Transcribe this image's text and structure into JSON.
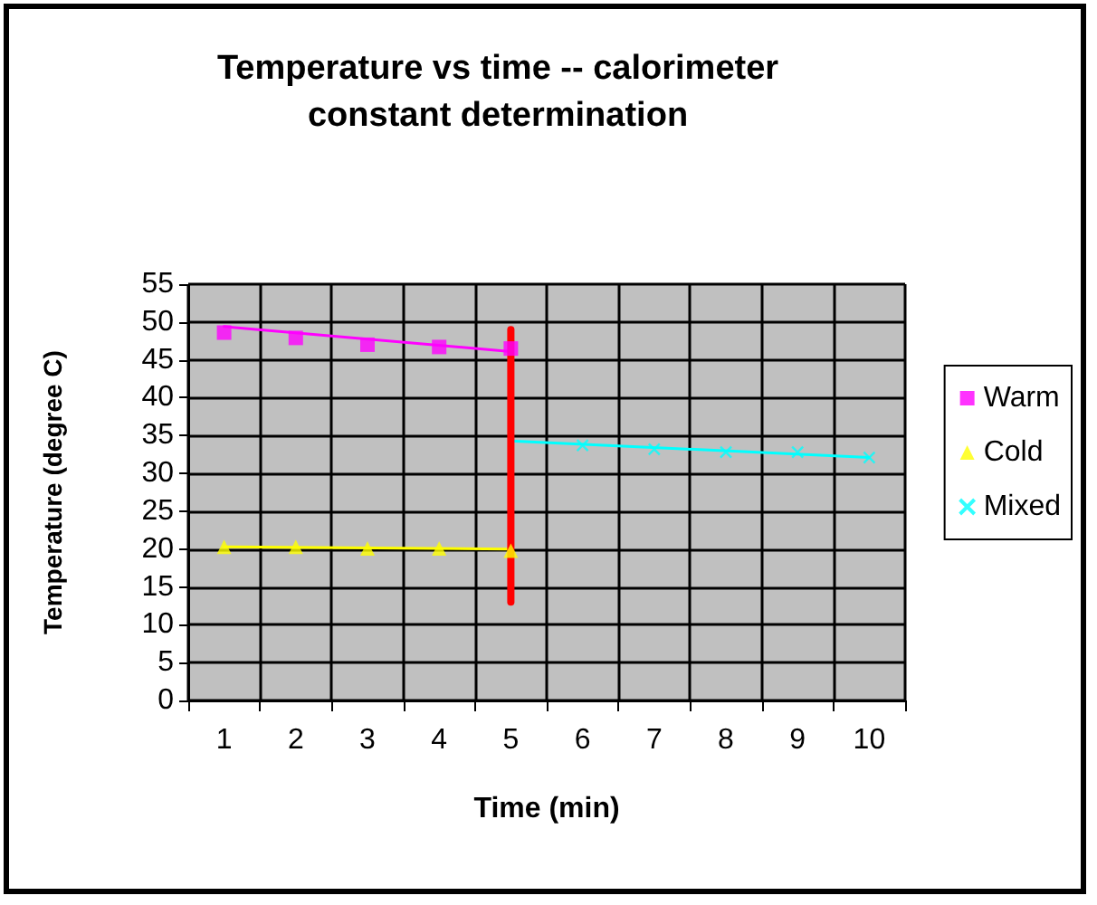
{
  "chart_data": {
    "type": "line",
    "title": "Temperature vs time -- calorimeter\nconstant determination",
    "xlabel": "Time (min)",
    "ylabel": "Temperature (degree C)",
    "categories": [
      "1",
      "2",
      "3",
      "4",
      "5",
      "6",
      "7",
      "8",
      "9",
      "10"
    ],
    "series": [
      {
        "name": "Warm",
        "type": "scatter",
        "marker": "square",
        "color": "#ff00ff",
        "values": [
          48.6,
          47.9,
          47.0,
          46.7,
          46.5,
          null,
          null,
          null,
          null,
          null
        ]
      },
      {
        "name": "Cold",
        "type": "scatter",
        "marker": "triangle",
        "color": "#ffff00",
        "values": [
          20.3,
          20.3,
          20.1,
          20.1,
          19.8,
          null,
          null,
          null,
          null,
          null
        ]
      },
      {
        "name": "Mixed",
        "type": "scatter",
        "marker": "cross",
        "color": "#00ffff",
        "values": [
          null,
          null,
          null,
          null,
          null,
          33.7,
          33.2,
          32.8,
          32.8,
          32.1
        ]
      },
      {
        "type": "line",
        "marker": "none",
        "color": "#ff00ff",
        "x": [
          "1",
          "5"
        ],
        "values": [
          49.4,
          46.1
        ]
      },
      {
        "type": "line",
        "marker": "none",
        "color": "#ffff00",
        "x": [
          "1",
          "5"
        ],
        "values": [
          20.3,
          20.0
        ]
      },
      {
        "type": "line",
        "marker": "none",
        "color": "#00ffff",
        "x": [
          "5",
          "10"
        ],
        "values": [
          34.3,
          32.1
        ]
      },
      {
        "type": "line",
        "marker": "none",
        "color": "#ff0000",
        "x": [
          "5",
          "5"
        ],
        "values": [
          49.0,
          13.0
        ]
      }
    ],
    "ylim": [
      0,
      55
    ],
    "yticks": [
      0,
      5,
      10,
      15,
      20,
      25,
      30,
      35,
      40,
      45,
      50,
      55
    ],
    "grid": true,
    "legend": "right"
  }
}
